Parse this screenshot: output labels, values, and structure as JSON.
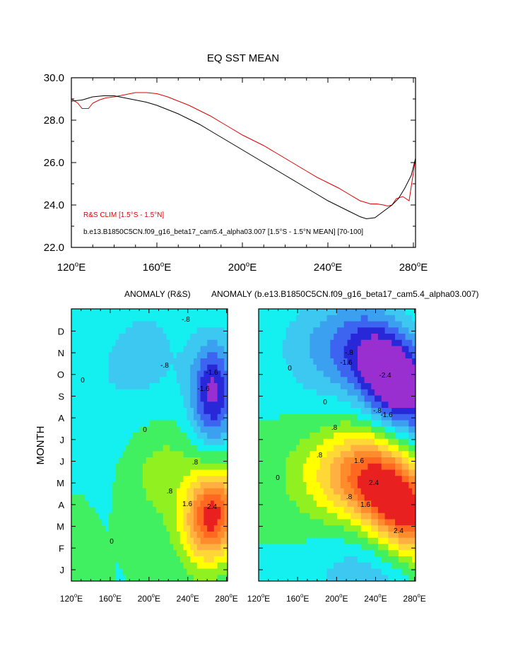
{
  "chart_data": [
    {
      "type": "line",
      "title": "EQ SST MEAN",
      "xlabel": "",
      "ylabel": "",
      "xlim": [
        120,
        281
      ],
      "ylim": [
        22,
        30
      ],
      "x_ticks": [
        120,
        160,
        200,
        240,
        280
      ],
      "x_tick_labels": [
        "120°E",
        "160°E",
        "200°E",
        "240°E",
        "280°E"
      ],
      "y_ticks": [
        22,
        24,
        26,
        28,
        30
      ],
      "y_tick_labels": [
        "22.0",
        "24.0",
        "26.0",
        "28.0",
        "30.0"
      ],
      "series": [
        {
          "name": "R&S CLIM [1.5°S - 1.5°N]",
          "color": "#e00000",
          "x": [
            120,
            123,
            125,
            128,
            130,
            133,
            136,
            140,
            145,
            150,
            155,
            160,
            165,
            170,
            175,
            180,
            185,
            190,
            195,
            200,
            205,
            210,
            215,
            220,
            225,
            230,
            235,
            240,
            245,
            250,
            255,
            260,
            263,
            266,
            268,
            270,
            272,
            275,
            278,
            281
          ],
          "y": [
            29.0,
            28.8,
            28.55,
            28.55,
            28.8,
            28.95,
            29.05,
            29.1,
            29.2,
            29.3,
            29.3,
            29.25,
            29.1,
            28.9,
            28.7,
            28.45,
            28.2,
            27.9,
            27.6,
            27.3,
            27.05,
            26.8,
            26.5,
            26.2,
            25.9,
            25.6,
            25.3,
            25.05,
            24.8,
            24.5,
            24.2,
            24.05,
            24.05,
            24.0,
            23.95,
            24.0,
            24.3,
            24.4,
            24.2,
            26.2
          ]
        },
        {
          "name": "b.e13.B1850C5CN.f09_g16_beta17_cam5.4_alpha03.007 [1.5°S - 1.5°N MEAN] [70-100]",
          "color": "#000000",
          "x": [
            120,
            125,
            130,
            135,
            140,
            145,
            150,
            155,
            160,
            165,
            170,
            175,
            180,
            185,
            190,
            195,
            200,
            205,
            210,
            215,
            220,
            225,
            230,
            235,
            240,
            245,
            250,
            255,
            258,
            262,
            266,
            270,
            273,
            276,
            279,
            281
          ],
          "y": [
            28.9,
            28.95,
            29.1,
            29.15,
            29.15,
            29.05,
            28.95,
            28.85,
            28.7,
            28.5,
            28.3,
            28.05,
            27.8,
            27.5,
            27.2,
            26.9,
            26.6,
            26.3,
            26.0,
            25.7,
            25.4,
            25.1,
            24.8,
            24.5,
            24.2,
            23.95,
            23.7,
            23.45,
            23.35,
            23.4,
            23.7,
            24.0,
            24.3,
            24.8,
            25.4,
            26.2
          ]
        }
      ],
      "legend": "bottom-left"
    },
    {
      "type": "heatmap",
      "title": "ANOMALY (R&S)",
      "xlim": [
        120,
        281
      ],
      "x_ticks": [
        120,
        160,
        200,
        240,
        280
      ],
      "x_tick_labels": [
        "120°E",
        "160°E",
        "200°E",
        "240°E",
        "280°E"
      ],
      "y_ticks": [
        "J",
        "F",
        "M",
        "A",
        "M",
        "J",
        "J",
        "A",
        "S",
        "O",
        "N",
        "D"
      ],
      "ylabel": "MONTH",
      "contour_interval": 0.4,
      "contour_labels": [
        "0",
        "-.8",
        "-1.6",
        ".8",
        "1.6",
        "2.4"
      ],
      "colormap": [
        {
          "max": -2.0,
          "color": "#9a2fd0"
        },
        {
          "max": -1.6,
          "color": "#2828d8"
        },
        {
          "max": -1.2,
          "color": "#3c64f0"
        },
        {
          "max": -0.8,
          "color": "#3ca0f0"
        },
        {
          "max": -0.4,
          "color": "#3cc8f0"
        },
        {
          "max": 0.0,
          "color": "#14f0f0"
        },
        {
          "max": 0.4,
          "color": "#40f060"
        },
        {
          "max": 0.8,
          "color": "#90f020"
        },
        {
          "max": 1.2,
          "color": "#ffff00"
        },
        {
          "max": 1.6,
          "color": "#ffd838"
        },
        {
          "max": 2.0,
          "color": "#ffb040"
        },
        {
          "max": 2.4,
          "color": "#ff8c2c"
        },
        {
          "max": 2.8,
          "color": "#ff6820"
        },
        {
          "max": 99,
          "color": "#e82020"
        }
      ],
      "features": [
        {
          "kind": "warm",
          "lon": 265,
          "month": 2.3,
          "amp": 3.0
        },
        {
          "kind": "cold",
          "lon": 265,
          "month": 7.5,
          "amp": -2.0
        }
      ]
    },
    {
      "type": "heatmap",
      "title": "ANOMALY (b.e13.B1850C5CN.f09_g16_beta17_cam5.4_alpha03.007)",
      "xlim": [
        120,
        281
      ],
      "x_ticks": [
        120,
        160,
        200,
        240,
        280
      ],
      "x_tick_labels": [
        "120°E",
        "160°E",
        "200°E",
        "240°E",
        "280°E"
      ],
      "y_ticks": [
        "J",
        "F",
        "M",
        "A",
        "M",
        "J",
        "J",
        "A",
        "S",
        "O",
        "N",
        "D"
      ],
      "contour_interval": 0.4,
      "contour_labels": [
        "0",
        "-.8",
        "-1.6",
        "-2.4",
        ".8",
        "1.6",
        "2.4"
      ],
      "features": [
        {
          "kind": "warm",
          "lon": 260,
          "month": 3.0,
          "amp": 3.2
        },
        {
          "kind": "cold",
          "lon": 255,
          "month": 8.5,
          "amp": -2.8
        }
      ]
    }
  ],
  "labels": {
    "top_title": "EQ SST MEAN",
    "bottom_title_left": "ANOMALY (R&S)",
    "bottom_title_right": "ANOMALY (b.e13.B1850C5CN.f09_g16_beta17_cam5.4_alpha03.007)",
    "month_axis_label": "MONTH",
    "legend_red": "R&S CLIM [1.5°S - 1.5°N]",
    "legend_black": "b.e13.B1850C5CN.f09_g16_beta17_cam5.4_alpha03.007 [1.5°S - 1.5°N MEAN] [70-100]"
  }
}
